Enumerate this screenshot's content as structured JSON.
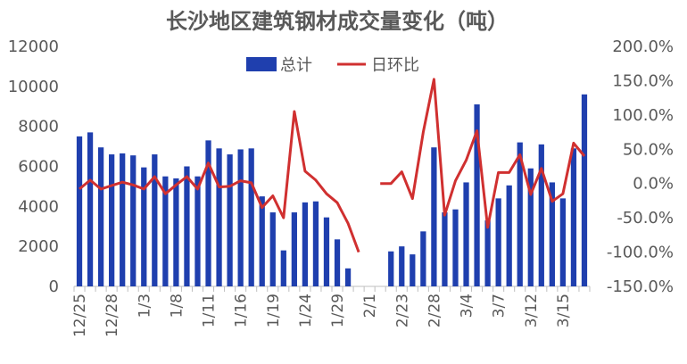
{
  "chart_data": {
    "type": "bar",
    "title": "长沙地区建筑钢材成交量变化（吨）",
    "ylim_left": [
      0,
      12000
    ],
    "yticks_left": [
      "0",
      "2000",
      "4000",
      "6000",
      "8000",
      "10000",
      "12000"
    ],
    "ylim_right": [
      -150,
      200
    ],
    "yticks_right": [
      "-150.0%",
      "-100.0%",
      "-50.0%",
      "0.0%",
      "50.0%",
      "100.0%",
      "150.0%",
      "200.0%"
    ],
    "x_tick_labels": [
      "12/25",
      "12/28",
      "1/3",
      "1/8",
      "1/11",
      "1/16",
      "1/19",
      "1/24",
      "1/29",
      "2/1",
      "2/23",
      "2/28",
      "3/4",
      "3/7",
      "3/12",
      "3/15"
    ],
    "x_tick_indices": [
      0,
      3,
      6,
      9,
      12,
      15,
      18,
      21,
      24,
      27,
      30,
      33,
      36,
      39,
      42,
      45
    ],
    "legend_position": "top-center",
    "series": [
      {
        "name": "总计",
        "type": "bar",
        "color": "#1f3fae",
        "axis": "left",
        "values": [
          7500,
          7700,
          6950,
          6600,
          6650,
          6550,
          5950,
          6600,
          5500,
          5400,
          6000,
          5500,
          7300,
          6900,
          6600,
          6850,
          6900,
          4500,
          3700,
          1800,
          3700,
          4200,
          4250,
          3450,
          2350,
          900,
          0,
          0,
          0,
          1750,
          2000,
          1600,
          2750,
          6950,
          3700,
          3850,
          5200,
          9100,
          3300,
          4400,
          5050,
          7200,
          5900,
          7100,
          5200,
          4400,
          6900,
          9600
        ]
      },
      {
        "name": "日环比",
        "type": "line",
        "color": "#d03030",
        "axis": "right",
        "values": [
          -8,
          5,
          -8,
          -3,
          2,
          -2,
          -8,
          10,
          -15,
          -2,
          10,
          -8,
          30,
          -5,
          -4,
          4,
          1,
          -35,
          -18,
          -50,
          105,
          18,
          5,
          -15,
          -28,
          -58,
          -100,
          null,
          0,
          0,
          17,
          -22,
          75,
          152,
          -46,
          4,
          34,
          77,
          -64,
          16,
          16,
          42,
          -16,
          22,
          -26,
          -15,
          59,
          40
        ]
      }
    ]
  }
}
